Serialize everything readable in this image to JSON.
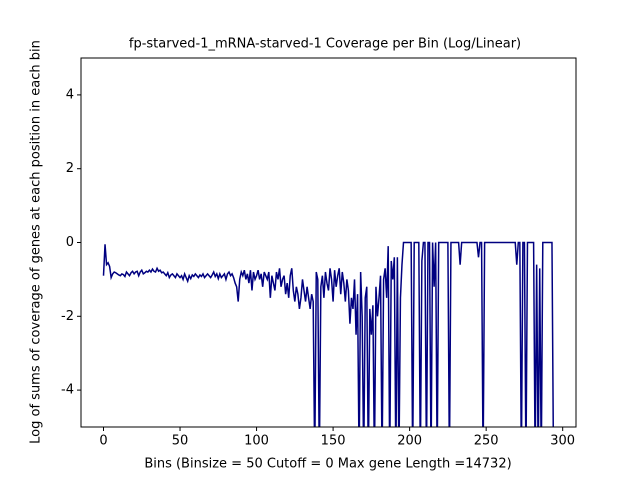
{
  "chart_data": {
    "type": "line",
    "title": "fp-starved-1_mRNA-starved-1 Coverage per Bin (Log/Linear)",
    "x_label": "Bins  (Binsize = 50 Cutoff = 0 Max gene Length =14732)",
    "y_label": "Log of sums of coverage of genes at each position in each bin",
    "xlim": [
      -14.7,
      308.7
    ],
    "ylim": [
      -5,
      5
    ],
    "xticks": [
      0,
      50,
      100,
      150,
      200,
      250,
      300
    ],
    "yticks": [
      -4,
      -2,
      0,
      2,
      4
    ],
    "grid": false,
    "series": [
      {
        "name": "coverage",
        "color": "#000080",
        "x": [
          0,
          1,
          2,
          3,
          4,
          5,
          6,
          7,
          8,
          9,
          10,
          11,
          12,
          13,
          14,
          15,
          16,
          17,
          18,
          19,
          20,
          21,
          22,
          23,
          24,
          25,
          26,
          27,
          28,
          29,
          30,
          31,
          32,
          33,
          34,
          35,
          36,
          37,
          38,
          39,
          40,
          41,
          42,
          43,
          44,
          45,
          46,
          47,
          48,
          49,
          50,
          51,
          52,
          53,
          54,
          55,
          56,
          57,
          58,
          59,
          60,
          61,
          62,
          63,
          64,
          65,
          66,
          67,
          68,
          69,
          70,
          71,
          72,
          73,
          74,
          75,
          76,
          77,
          78,
          79,
          80,
          81,
          82,
          83,
          84,
          85,
          86,
          87,
          88,
          89,
          90,
          91,
          92,
          93,
          94,
          95,
          96,
          97,
          98,
          99,
          100,
          101,
          102,
          103,
          104,
          105,
          106,
          107,
          108,
          109,
          110,
          111,
          112,
          113,
          114,
          115,
          116,
          117,
          118,
          119,
          120,
          121,
          122,
          123,
          124,
          125,
          126,
          127,
          128,
          129,
          130,
          131,
          132,
          133,
          134,
          135,
          136,
          137,
          138,
          139,
          140,
          141,
          142,
          143,
          144,
          145,
          146,
          147,
          148,
          149,
          150,
          151,
          152,
          153,
          154,
          155,
          156,
          157,
          158,
          159,
          160,
          161,
          162,
          163,
          164,
          165,
          166,
          167,
          168,
          169,
          170,
          171,
          172,
          173,
          174,
          175,
          176,
          177,
          178,
          179,
          180,
          181,
          182,
          183,
          184,
          185,
          186,
          187,
          188,
          189,
          190,
          191,
          192,
          193,
          194,
          195,
          196,
          197,
          198,
          199,
          200,
          201,
          202,
          203,
          204,
          205,
          206,
          207,
          208,
          209,
          210,
          211,
          212,
          213,
          214,
          215,
          216,
          217,
          218,
          219,
          220,
          221,
          222,
          223,
          224,
          225,
          226,
          227,
          228,
          229,
          230,
          231,
          232,
          233,
          234,
          235,
          236,
          237,
          238,
          239,
          240,
          241,
          242,
          243,
          244,
          245,
          246,
          247,
          248,
          249,
          250,
          251,
          252,
          253,
          254,
          255,
          256,
          257,
          258,
          259,
          260,
          261,
          262,
          263,
          264,
          265,
          266,
          267,
          268,
          269,
          270,
          271,
          272,
          273,
          274,
          275,
          276,
          277,
          278,
          279,
          280,
          281,
          282,
          283,
          284,
          285,
          286,
          287,
          288,
          289,
          290,
          291,
          292,
          293,
          294
        ],
        "values": [
          -0.9,
          -0.05,
          -0.6,
          -0.55,
          -0.65,
          -0.95,
          -0.85,
          -0.8,
          -0.82,
          -0.85,
          -0.88,
          -0.9,
          -0.85,
          -0.87,
          -0.92,
          -0.8,
          -0.85,
          -0.9,
          -0.82,
          -0.78,
          -0.85,
          -0.8,
          -0.78,
          -0.9,
          -0.8,
          -0.75,
          -0.85,
          -0.82,
          -0.78,
          -0.8,
          -0.75,
          -0.8,
          -0.72,
          -0.78,
          -0.8,
          -0.7,
          -0.78,
          -0.75,
          -0.82,
          -0.8,
          -0.85,
          -0.9,
          -0.82,
          -0.95,
          -0.88,
          -0.85,
          -0.9,
          -0.95,
          -0.85,
          -0.9,
          -0.95,
          -0.9,
          -1.0,
          -0.85,
          -0.95,
          -1.05,
          -0.9,
          -0.98,
          -0.88,
          -0.92,
          -0.85,
          -0.9,
          -0.95,
          -0.88,
          -0.92,
          -0.85,
          -0.95,
          -0.9,
          -0.85,
          -0.9,
          -0.95,
          -0.88,
          -0.8,
          -0.92,
          -0.85,
          -0.98,
          -0.85,
          -0.95,
          -0.9,
          -0.85,
          -1.0,
          -0.85,
          -0.8,
          -0.9,
          -0.85,
          -0.95,
          -1.1,
          -1.2,
          -1.6,
          -1.0,
          -0.8,
          -0.9,
          -0.75,
          -1.0,
          -0.85,
          -1.1,
          -0.75,
          -1.3,
          -0.8,
          -1.0,
          -0.9,
          -0.75,
          -1.0,
          -0.85,
          -1.2,
          -0.8,
          -0.9,
          -1.0,
          -0.8,
          -1.5,
          -0.9,
          -1.1,
          -1.3,
          -0.8,
          -1.0,
          -0.7,
          -1.2,
          -1.0,
          -0.9,
          -1.4,
          -1.1,
          -1.5,
          -0.9,
          -0.7,
          -1.3,
          -1.6,
          -1.2,
          -1.4,
          -1.8,
          -1.5,
          -1.0,
          -1.3,
          -1.6,
          -1.2,
          -1.5,
          -1.8,
          -1.4,
          -1.6,
          -6,
          -0.8,
          -1.0,
          -6,
          -1.2,
          -0.9,
          -1.5,
          -0.8,
          -1.1,
          -1.3,
          -0.7,
          -1.0,
          -1.6,
          -0.75,
          -1.2,
          -0.9,
          -0.7,
          -1.4,
          -0.8,
          -1.1,
          -1.6,
          -1.0,
          -1.3,
          -2.2,
          -1.5,
          -1.8,
          -1.0,
          -2.5,
          -1.4,
          -6,
          -0.8,
          -2.0,
          -6,
          -1.5,
          -1.2,
          -6,
          -1.8,
          -2.5,
          -1.7,
          -6,
          -1.2,
          -2.0,
          -1.5,
          -0.9,
          -6,
          -1.0,
          -0.7,
          -1.5,
          -0.1,
          -6,
          -0.5,
          -1.0,
          -0.4,
          -6,
          -0.4,
          -6,
          -1.5,
          -0.6,
          0,
          0,
          0,
          0,
          0,
          0,
          -6,
          0,
          0,
          0,
          0,
          -6,
          -0.5,
          0,
          0,
          -6,
          0,
          0,
          -6,
          0,
          -1.2,
          0,
          -6,
          0,
          0,
          0,
          0,
          0,
          0,
          0,
          -6,
          0,
          0,
          0,
          0,
          0,
          0,
          -0.6,
          0,
          0,
          0,
          0,
          0,
          0,
          0,
          0,
          0,
          0,
          0,
          -0.4,
          0,
          0,
          -6,
          0,
          0,
          0,
          0,
          0,
          0,
          0,
          0,
          0,
          0,
          0,
          0,
          0,
          0,
          0,
          0,
          0,
          0,
          0,
          0,
          0,
          -0.6,
          0,
          0,
          -6,
          0,
          0,
          -6,
          0,
          0,
          0,
          0,
          0,
          -6,
          -0.6,
          -6,
          -0.7,
          -6,
          0,
          0,
          0,
          0,
          0,
          0,
          0,
          -6
        ]
      }
    ]
  }
}
